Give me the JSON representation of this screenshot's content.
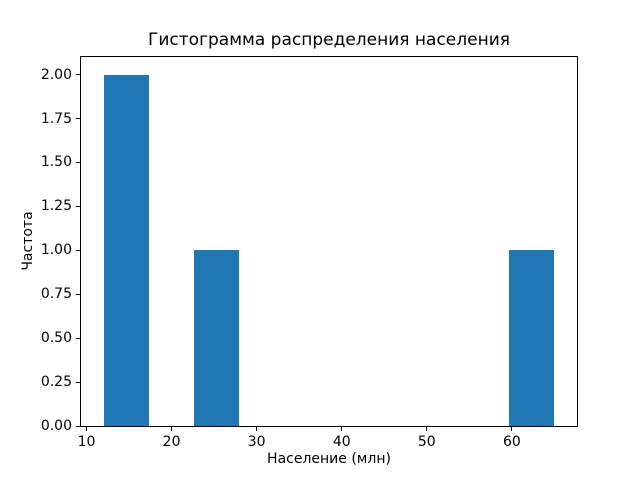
{
  "chart_data": {
    "type": "bar",
    "subtype": "histogram",
    "title": "Гистограмма распределения населения",
    "xlabel": "Население (млн)",
    "ylabel": "Частота",
    "bin_edges": [
      12.0,
      17.3,
      22.6,
      27.9,
      33.2,
      38.5,
      43.8,
      49.1,
      54.4,
      59.7,
      65.0
    ],
    "counts": [
      2,
      0,
      1,
      0,
      0,
      0,
      0,
      0,
      0,
      1
    ],
    "xlim": [
      9.35,
      67.65
    ],
    "ylim": [
      0,
      2.1
    ],
    "xticks": [
      {
        "v": 10,
        "label": "10"
      },
      {
        "v": 20,
        "label": "20"
      },
      {
        "v": 30,
        "label": "30"
      },
      {
        "v": 40,
        "label": "40"
      },
      {
        "v": 50,
        "label": "50"
      },
      {
        "v": 60,
        "label": "60"
      }
    ],
    "yticks": [
      {
        "v": 0.0,
        "label": "0.00"
      },
      {
        "v": 0.25,
        "label": "0.25"
      },
      {
        "v": 0.5,
        "label": "0.50"
      },
      {
        "v": 0.75,
        "label": "0.75"
      },
      {
        "v": 1.0,
        "label": "1.00"
      },
      {
        "v": 1.25,
        "label": "1.25"
      },
      {
        "v": 1.5,
        "label": "1.50"
      },
      {
        "v": 1.75,
        "label": "1.75"
      },
      {
        "v": 2.0,
        "label": "2.00"
      }
    ],
    "bar_color": "#1f77b4",
    "axis_color": "#000000",
    "grid": false,
    "legend": "none"
  }
}
